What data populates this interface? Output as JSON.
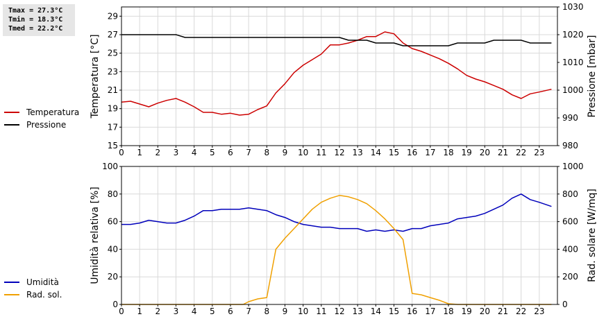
{
  "stats": {
    "tmax": "Tmax = 27.3°C",
    "tmin": "Tmin = 18.3°C",
    "tmed": "Tmed = 22.2°C"
  },
  "chart_data": [
    {
      "type": "line",
      "xlim": [
        0,
        24
      ],
      "x_ticks": [
        0,
        1,
        2,
        3,
        4,
        5,
        6,
        7,
        8,
        9,
        10,
        11,
        12,
        13,
        14,
        15,
        16,
        17,
        18,
        19,
        20,
        21,
        22,
        23
      ],
      "ylabel": "Temperatura [°C]",
      "ylim": [
        15,
        30
      ],
      "y_ticks": [
        15,
        17,
        19,
        21,
        23,
        25,
        27,
        29
      ],
      "y2label": "Pressione [mbar]",
      "y2lim": [
        980,
        1030
      ],
      "y2_ticks": [
        980,
        990,
        1000,
        1010,
        1020,
        1030
      ],
      "grid": true,
      "legend_position": "left",
      "series": [
        {
          "name": "Temperatura",
          "axis": "left",
          "color": "#cc0000",
          "x": [
            0,
            0.5,
            1,
            1.5,
            2,
            2.5,
            3,
            3.5,
            4,
            4.5,
            5,
            5.5,
            6,
            6.5,
            7,
            7.5,
            8,
            8.5,
            9,
            9.5,
            10,
            10.5,
            11,
            11.5,
            12,
            12.5,
            13,
            13.5,
            14,
            14.5,
            15,
            15.5,
            16,
            16.5,
            17,
            17.5,
            18,
            18.5,
            19,
            19.5,
            20,
            20.5,
            21,
            21.5,
            22,
            22.5,
            23,
            23.67
          ],
          "values": [
            19.7,
            19.8,
            19.5,
            19.2,
            19.6,
            19.9,
            20.1,
            19.7,
            19.2,
            18.6,
            18.6,
            18.4,
            18.5,
            18.3,
            18.4,
            18.9,
            19.3,
            20.7,
            21.7,
            22.9,
            23.7,
            24.3,
            24.9,
            25.9,
            25.9,
            26.1,
            26.4,
            26.8,
            26.8,
            27.3,
            27.1,
            26.1,
            25.5,
            25.2,
            24.8,
            24.4,
            23.9,
            23.3,
            22.6,
            22.2,
            21.9,
            21.5,
            21.1,
            20.5,
            20.1,
            20.6,
            20.8,
            21.1
          ]
        },
        {
          "name": "Pressione",
          "axis": "right",
          "color": "#000000",
          "x": [
            0,
            1,
            2,
            3,
            3.5,
            4,
            5,
            6,
            7,
            8,
            9,
            10,
            11,
            12,
            12.5,
            13,
            13.5,
            14,
            14.5,
            15,
            15.5,
            16,
            17,
            18,
            18.5,
            19,
            20,
            20.5,
            21,
            22,
            22.5,
            23,
            23.67
          ],
          "values": [
            1020,
            1020,
            1020,
            1020,
            1019,
            1019,
            1019,
            1019,
            1019,
            1019,
            1019,
            1019,
            1019,
            1019,
            1018,
            1018,
            1018,
            1017,
            1017,
            1017,
            1016,
            1016,
            1016,
            1016,
            1017,
            1017,
            1017,
            1018,
            1018,
            1018,
            1017,
            1017,
            1017
          ]
        }
      ]
    },
    {
      "type": "line",
      "xlim": [
        0,
        24
      ],
      "x_ticks": [
        0,
        1,
        2,
        3,
        4,
        5,
        6,
        7,
        8,
        9,
        10,
        11,
        12,
        13,
        14,
        15,
        16,
        17,
        18,
        19,
        20,
        21,
        22,
        23
      ],
      "ylabel": "Umidità relativa [%]",
      "ylim": [
        0,
        100
      ],
      "y_ticks": [
        0,
        20,
        40,
        60,
        80,
        100
      ],
      "y2label": "Rad. solare [W/mq]",
      "y2lim": [
        0,
        1000
      ],
      "y2_ticks": [
        0,
        200,
        400,
        600,
        800,
        1000
      ],
      "grid": true,
      "legend_position": "left",
      "series": [
        {
          "name": "Umidità",
          "axis": "left",
          "color": "#0000bb",
          "x": [
            0,
            0.5,
            1,
            1.5,
            2,
            2.5,
            3,
            3.5,
            4,
            4.5,
            5,
            5.5,
            6,
            6.5,
            7,
            7.5,
            8,
            8.5,
            9,
            9.5,
            10,
            10.5,
            11,
            11.5,
            12,
            12.5,
            13,
            13.5,
            14,
            14.5,
            15,
            15.5,
            16,
            16.5,
            17,
            17.5,
            18,
            18.5,
            19,
            19.5,
            20,
            20.5,
            21,
            21.5,
            22,
            22.5,
            23,
            23.67
          ],
          "values": [
            58,
            58,
            59,
            61,
            60,
            59,
            59,
            61,
            64,
            68,
            68,
            69,
            69,
            69,
            70,
            69,
            68,
            65,
            63,
            60,
            58,
            57,
            56,
            56,
            55,
            55,
            55,
            53,
            54,
            53,
            54,
            53,
            55,
            55,
            57,
            58,
            59,
            62,
            63,
            64,
            66,
            69,
            72,
            77,
            80,
            76,
            74,
            71
          ]
        },
        {
          "name": "Rad. sol.",
          "axis": "right",
          "color": "#f0a000",
          "x": [
            0,
            1,
            2,
            3,
            4,
            5,
            6,
            6.7,
            7,
            7.5,
            8,
            8.5,
            9,
            9.5,
            10,
            10.5,
            11,
            11.5,
            12,
            12.5,
            13,
            13.5,
            14,
            14.5,
            15,
            15.5,
            16,
            16.5,
            17,
            17.5,
            18,
            18.5,
            19,
            20,
            21,
            22,
            23,
            23.67
          ],
          "values": [
            0,
            0,
            0,
            0,
            0,
            0,
            0,
            0,
            20,
            40,
            50,
            400,
            480,
            550,
            620,
            690,
            740,
            770,
            790,
            780,
            760,
            730,
            680,
            620,
            550,
            470,
            80,
            70,
            50,
            30,
            5,
            0,
            0,
            0,
            0,
            0,
            0,
            0
          ]
        }
      ]
    }
  ]
}
